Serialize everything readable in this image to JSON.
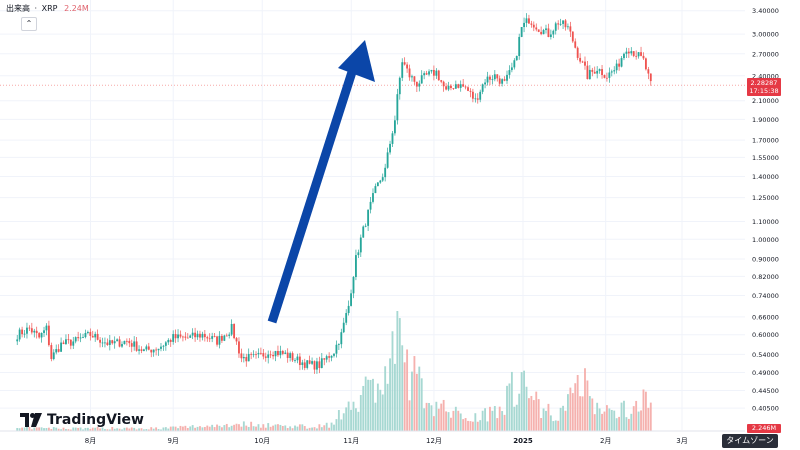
{
  "header": {
    "volume_label": "出来高",
    "separator": "·",
    "symbol": "XRP",
    "volume_value": "2.24M"
  },
  "logo": {
    "text": "TradingView"
  },
  "price_tag": {
    "price": "2.28287",
    "countdown": "17:15:38"
  },
  "volume_tag": "2.246M",
  "timezone_button": "タイムゾーン",
  "colors": {
    "up": "#26a69a",
    "down": "#ef5350",
    "vol_up": "#a7d8d2",
    "vol_down": "#f5b1ae",
    "arrow": "#0b46a8",
    "grid": "#f0f3fa"
  },
  "chart_data": {
    "type": "candlestick",
    "y_scale": "log",
    "y_ticks": [
      "3.40000",
      "3.00000",
      "2.70000",
      "2.40000",
      "2.10000",
      "1.90000",
      "1.70000",
      "1.55000",
      "1.40000",
      "1.25000",
      "1.10000",
      "1.00000",
      "0.90000",
      "0.82000",
      "0.74000",
      "0.66000",
      "0.60000",
      "0.54000",
      "0.49000",
      "0.44500",
      "0.40500"
    ],
    "x_ticks": [
      "8月",
      "9月",
      "10月",
      "11月",
      "12月",
      "2025",
      "2月",
      "3月"
    ],
    "x_tick_pos": [
      0.07,
      0.2,
      0.34,
      0.48,
      0.61,
      0.75,
      0.88,
      1.0
    ],
    "anchors": [
      [
        0,
        0.6
      ],
      [
        5,
        0.62
      ],
      [
        9,
        0.59
      ],
      [
        12,
        0.62
      ],
      [
        14,
        0.53
      ],
      [
        18,
        0.57
      ],
      [
        24,
        0.58
      ],
      [
        30,
        0.6
      ],
      [
        38,
        0.57
      ],
      [
        45,
        0.58
      ],
      [
        52,
        0.55
      ],
      [
        58,
        0.56
      ],
      [
        64,
        0.59
      ],
      [
        70,
        0.59
      ],
      [
        76,
        0.6
      ],
      [
        82,
        0.58
      ],
      [
        88,
        0.62
      ],
      [
        92,
        0.53
      ],
      [
        98,
        0.53
      ],
      [
        104,
        0.55
      ],
      [
        110,
        0.54
      ],
      [
        116,
        0.52
      ],
      [
        120,
        0.51
      ],
      [
        124,
        0.51
      ],
      [
        130,
        0.55
      ],
      [
        133,
        0.6
      ],
      [
        136,
        0.7
      ],
      [
        139,
        0.9
      ],
      [
        143,
        1.1
      ],
      [
        147,
        1.3
      ],
      [
        151,
        1.45
      ],
      [
        155,
        1.9
      ],
      [
        158,
        2.6
      ],
      [
        161,
        2.4
      ],
      [
        164,
        2.3
      ],
      [
        168,
        2.4
      ],
      [
        172,
        2.45
      ],
      [
        176,
        2.2
      ],
      [
        180,
        2.3
      ],
      [
        184,
        2.25
      ],
      [
        188,
        2.1
      ],
      [
        192,
        2.35
      ],
      [
        196,
        2.4
      ],
      [
        200,
        2.3
      ],
      [
        204,
        2.55
      ],
      [
        207,
        3.1
      ],
      [
        210,
        3.25
      ],
      [
        214,
        3.1
      ],
      [
        218,
        3.0
      ],
      [
        222,
        3.2
      ],
      [
        226,
        3.1
      ],
      [
        230,
        2.7
      ],
      [
        234,
        2.4
      ],
      [
        238,
        2.5
      ],
      [
        242,
        2.4
      ],
      [
        246,
        2.5
      ],
      [
        250,
        2.8
      ],
      [
        254,
        2.7
      ],
      [
        257,
        2.6
      ],
      [
        260,
        2.28
      ]
    ],
    "volume_anchors": [
      [
        0,
        0.02
      ],
      [
        60,
        0.02
      ],
      [
        92,
        0.05
      ],
      [
        120,
        0.03
      ],
      [
        130,
        0.05
      ],
      [
        138,
        0.25
      ],
      [
        150,
        0.35
      ],
      [
        156,
        0.6
      ],
      [
        162,
        0.4
      ],
      [
        170,
        0.2
      ],
      [
        180,
        0.12
      ],
      [
        190,
        0.1
      ],
      [
        200,
        0.22
      ],
      [
        206,
        0.38
      ],
      [
        212,
        0.22
      ],
      [
        220,
        0.12
      ],
      [
        226,
        0.18
      ],
      [
        232,
        0.45
      ],
      [
        236,
        0.2
      ],
      [
        244,
        0.12
      ],
      [
        252,
        0.18
      ],
      [
        260,
        0.22
      ]
    ],
    "n_candles": 261
  }
}
